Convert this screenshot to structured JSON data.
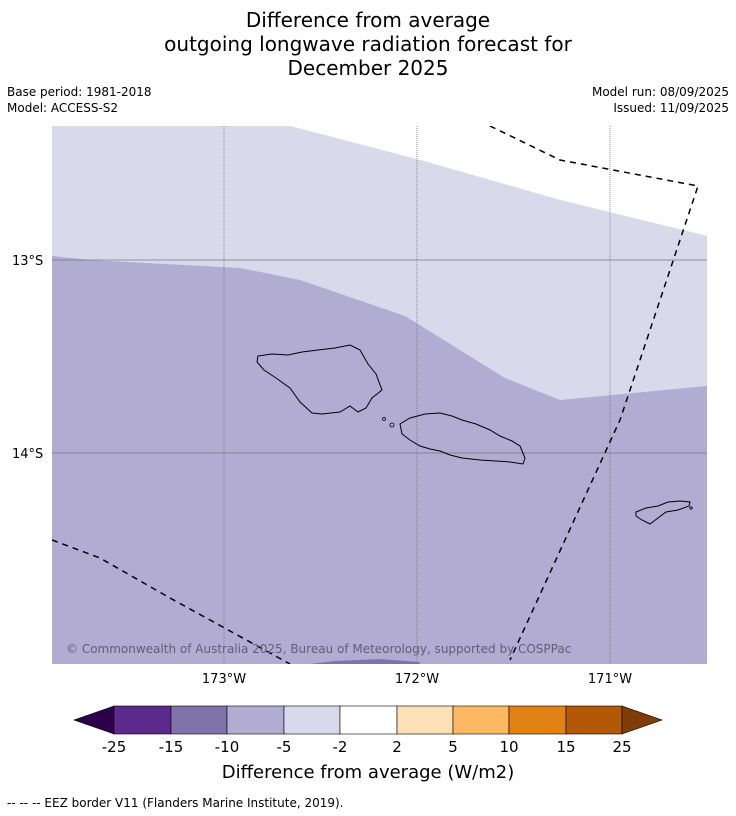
{
  "title": {
    "line1": "Difference from average",
    "line2": "outgoing longwave radiation forecast for",
    "line3": "December 2025"
  },
  "meta": {
    "base_period": "Base period: 1981-2018",
    "model": "Model: ACCESS-S2",
    "model_run": "Model run: 08/09/2025",
    "issued": "Issued: 11/09/2025"
  },
  "map": {
    "lat_labels": [
      "13°S",
      "14°S"
    ],
    "lon_labels": [
      "173°W",
      "172°W",
      "171°W"
    ],
    "copyright": "© Commonwealth of Australia 2025, Bureau of Meteorology, supported by COSPPac"
  },
  "colorbar": {
    "title": "Difference from average (W/m2)",
    "ticks": [
      "-25",
      "-15",
      "-10",
      "-5",
      "-2",
      "2",
      "5",
      "10",
      "15",
      "25"
    ],
    "colors": [
      "#2d004b",
      "#5b2a8c",
      "#8073ac",
      "#b2abd2",
      "#d8daeb",
      "#ffffff",
      "#fee0b6",
      "#fdb863",
      "#e08214",
      "#b35806",
      "#7f3b08"
    ]
  },
  "legend": {
    "eez": "--  --  -- EEZ border V11 (Flanders Marine Institute, 2019)."
  }
}
